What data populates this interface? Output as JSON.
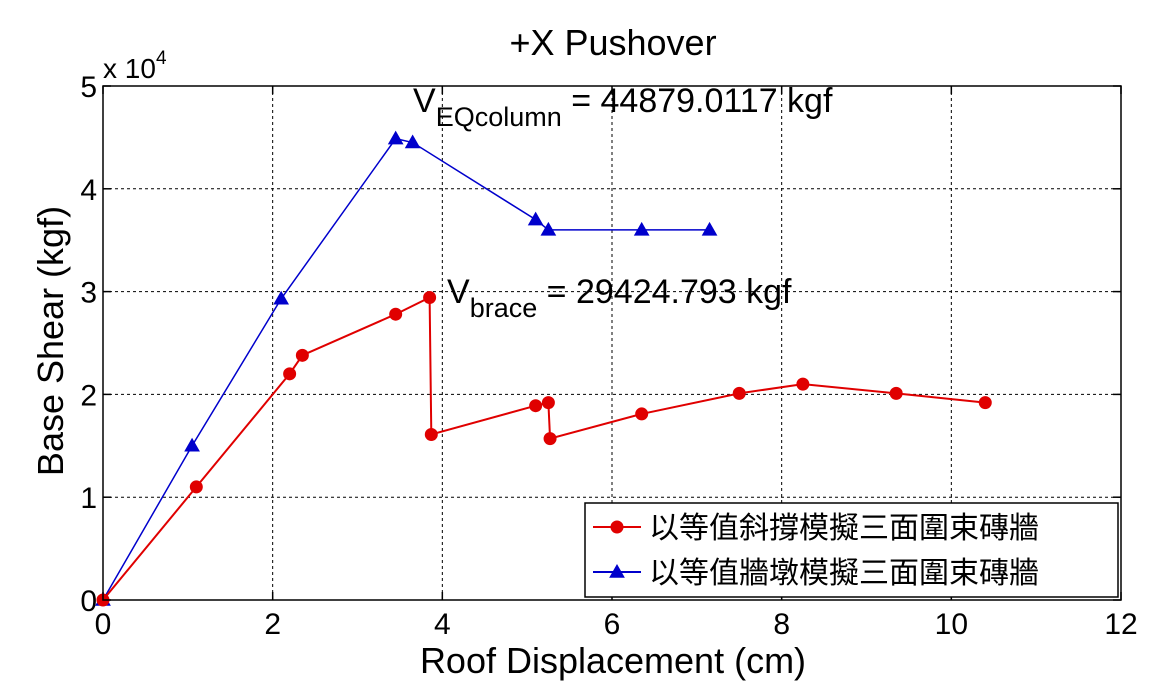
{
  "chart_data": {
    "type": "line",
    "title": "+X Pushover",
    "xlabel": "Roof Displacement (cm)",
    "ylabel": "Base Shear (kgf)",
    "y_multiplier_base": "x 10",
    "y_multiplier_exp": "4",
    "xlim": [
      0,
      12
    ],
    "ylim": [
      0,
      50000
    ],
    "xticks": [
      0,
      2,
      4,
      6,
      8,
      10,
      12
    ],
    "yticks": [
      0,
      10000,
      20000,
      30000,
      40000,
      50000
    ],
    "ytick_labels": [
      "0",
      "1",
      "2",
      "3",
      "4",
      "5"
    ],
    "grid": true,
    "legend_position": "bottom-right",
    "series": [
      {
        "name": "以等值斜撐模擬三面圍束磚牆",
        "color": "#e00000",
        "marker": "circle",
        "x": [
          0,
          1.1,
          2.2,
          2.35,
          3.45,
          3.85,
          3.87,
          5.1,
          5.25,
          5.27,
          6.35,
          7.5,
          8.25,
          9.35,
          10.4
        ],
        "y": [
          0,
          11000,
          22000,
          23800,
          27800,
          29424.793,
          16100,
          18900,
          19200,
          15700,
          18100,
          20100,
          21000,
          20100,
          19200
        ]
      },
      {
        "name": "以等值牆墩模擬三面圍束磚牆",
        "color": "#0000cc",
        "marker": "triangle",
        "x": [
          0,
          1.05,
          2.1,
          3.45,
          3.65,
          5.1,
          5.25,
          6.35,
          7.15
        ],
        "y": [
          0,
          15000,
          29300,
          44879.0117,
          44500,
          37000,
          36000,
          36000,
          36000
        ]
      }
    ],
    "annotations": [
      {
        "main": "V",
        "sub": "EQcolumn",
        "rest": " = 44879.0117 kgf"
      },
      {
        "main": "V",
        "sub": "brace",
        "rest": " = 29424.793 kgf"
      }
    ]
  }
}
